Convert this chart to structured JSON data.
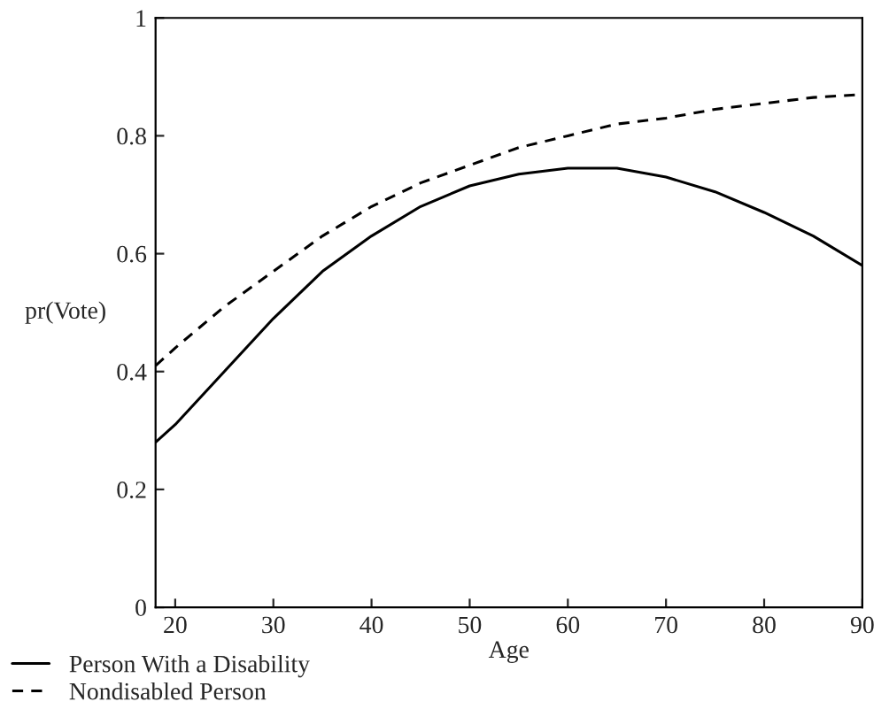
{
  "chart_data": {
    "type": "line",
    "xlabel": "Age",
    "ylabel": "pr(Vote)",
    "x": [
      18,
      20,
      25,
      30,
      35,
      40,
      45,
      50,
      55,
      60,
      65,
      70,
      75,
      80,
      85,
      90
    ],
    "series": [
      {
        "name": "Person With a Disability",
        "color": "#000000",
        "line_style": "solid",
        "values": [
          0.28,
          0.31,
          0.4,
          0.49,
          0.57,
          0.63,
          0.68,
          0.715,
          0.735,
          0.745,
          0.745,
          0.73,
          0.705,
          0.67,
          0.63,
          0.58
        ]
      },
      {
        "name": "Nondisabled Person",
        "color": "#000000",
        "line_style": "dashed",
        "values": [
          0.41,
          0.44,
          0.51,
          0.57,
          0.63,
          0.68,
          0.72,
          0.75,
          0.78,
          0.8,
          0.82,
          0.83,
          0.845,
          0.855,
          0.865,
          0.87
        ]
      }
    ],
    "xlim": [
      18,
      90
    ],
    "xticks": [
      20,
      30,
      40,
      50,
      60,
      70,
      80,
      90
    ],
    "ylim": [
      0,
      1
    ],
    "yticks": [
      0,
      {
        "value": 0.2,
        "label": "0.2"
      },
      {
        "value": 0.4,
        "label": "0.4"
      },
      {
        "value": 0.6,
        "label": "0.6"
      },
      {
        "value": 0.8,
        "label": "0.8"
      },
      1
    ],
    "grid": false,
    "legend": "bottom left"
  }
}
